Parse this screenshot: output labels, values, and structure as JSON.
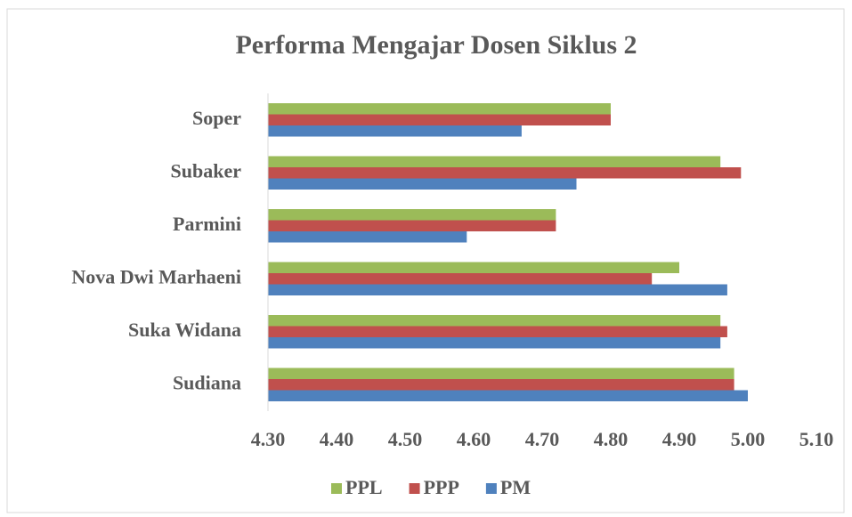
{
  "chart_data": {
    "type": "barh",
    "title": "Performa Mengajar Dosen Siklus 2",
    "categories": [
      "Soper",
      "Subaker",
      "Parmini",
      "Nova Dwi Marhaeni",
      "Suka Widana",
      "Sudiana"
    ],
    "series": [
      {
        "name": "PPL",
        "color": "#9bbb59",
        "values": [
          4.8,
          4.96,
          4.72,
          4.9,
          4.96,
          4.98
        ]
      },
      {
        "name": "PPP",
        "color": "#c0504d",
        "values": [
          4.8,
          4.99,
          4.72,
          4.86,
          4.97,
          4.98
        ]
      },
      {
        "name": "PM",
        "color": "#4f81bd",
        "values": [
          4.67,
          4.75,
          4.59,
          4.97,
          4.96,
          5.0
        ]
      }
    ],
    "xlim": [
      4.3,
      5.1
    ],
    "xticks": [
      {
        "value": 4.3,
        "label": "4.30"
      },
      {
        "value": 4.4,
        "label": "4.40"
      },
      {
        "value": 4.5,
        "label": "4.50"
      },
      {
        "value": 4.6,
        "label": "4.60"
      },
      {
        "value": 4.7,
        "label": "4.70"
      },
      {
        "value": 4.8,
        "label": "4.80"
      },
      {
        "value": 4.9,
        "label": "4.90"
      },
      {
        "value": 5.0,
        "label": "5.00"
      },
      {
        "value": 5.1,
        "label": "5.10"
      }
    ],
    "grid": false,
    "legend": "bottom"
  }
}
